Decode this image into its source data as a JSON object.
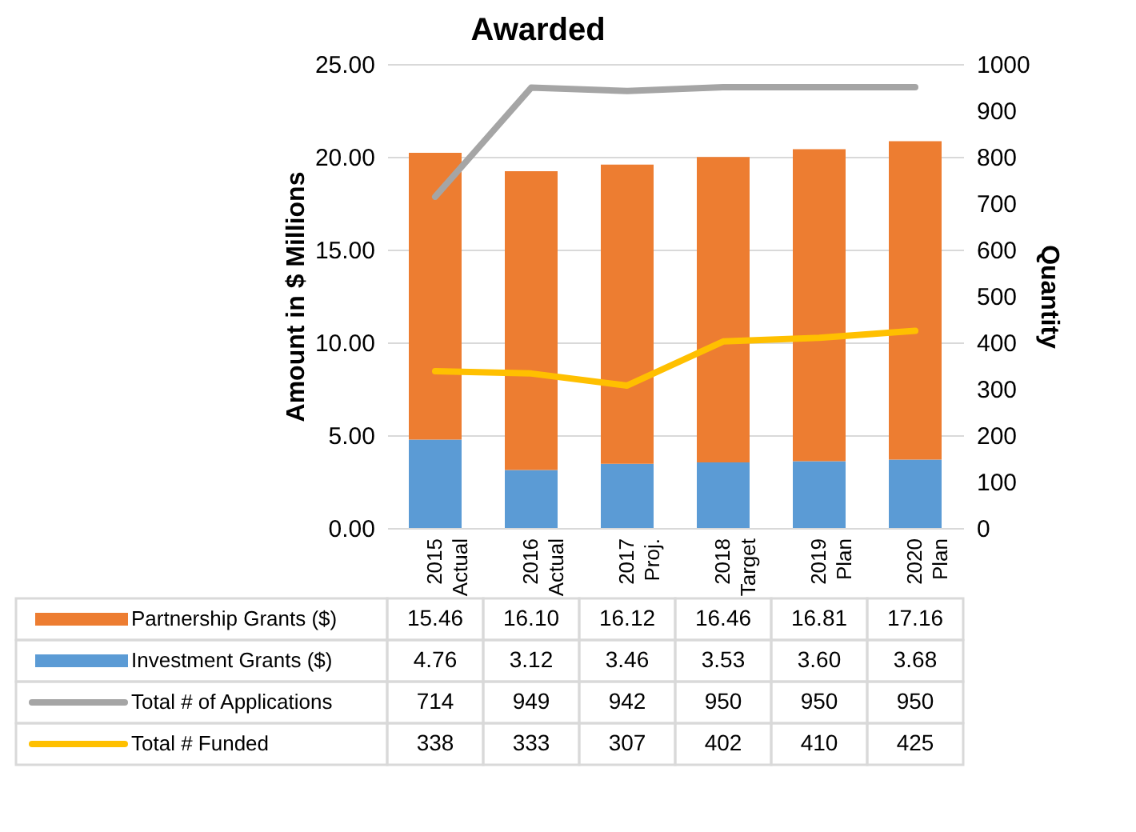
{
  "chart_data": {
    "type": "bar",
    "title": "Awarded",
    "ylabel": "Amount in $ Millions",
    "y2label": "Quantity",
    "categories": [
      "2015 Actual",
      "2016 Actual",
      "2017 Proj.",
      "2018 Target",
      "2019 Plan",
      "2020 Plan"
    ],
    "stacked": true,
    "series": [
      {
        "name": "Investment  Grants ($)",
        "color": "#5b9bd5",
        "values": [
          4.76,
          3.12,
          3.46,
          3.53,
          3.6,
          3.68
        ],
        "value_labels": [
          "4.76",
          "3.12",
          "3.46",
          "3.53",
          "3.60",
          "3.68"
        ]
      },
      {
        "name": "Partnership  Grants ($)",
        "color": "#ed7d31",
        "values": [
          15.46,
          16.1,
          16.12,
          16.46,
          16.81,
          17.16
        ],
        "value_labels": [
          "15.46",
          "16.10",
          "16.12",
          "16.46",
          "16.81",
          "17.16"
        ]
      },
      {
        "name": "Total # of Applications",
        "type": "line",
        "axis": "y2",
        "color": "#a5a5a5",
        "values": [
          714,
          949,
          942,
          950,
          950,
          950
        ],
        "value_labels": [
          "714",
          "949",
          "942",
          "950",
          "950",
          "950"
        ]
      },
      {
        "name": "Total # Funded",
        "type": "line",
        "axis": "y2",
        "color": "#ffc000",
        "values": [
          338,
          333,
          307,
          402,
          410,
          425
        ],
        "value_labels": [
          "338",
          "333",
          "307",
          "402",
          "410",
          "425"
        ]
      }
    ],
    "ylim": [
      0,
      25
    ],
    "yticks": [
      {
        "value": 0,
        "label": "0.00"
      },
      {
        "value": 5,
        "label": "5.00"
      },
      {
        "value": 10,
        "label": "10.00"
      },
      {
        "value": 15,
        "label": "15.00"
      },
      {
        "value": 20,
        "label": "20.00"
      },
      {
        "value": 25,
        "label": "25.00"
      }
    ],
    "y2lim": [
      0,
      1000
    ],
    "y2ticks": [
      0,
      100,
      200,
      300,
      400,
      500,
      600,
      700,
      800,
      900,
      1000
    ],
    "grid": "y",
    "legend": "bottom"
  }
}
